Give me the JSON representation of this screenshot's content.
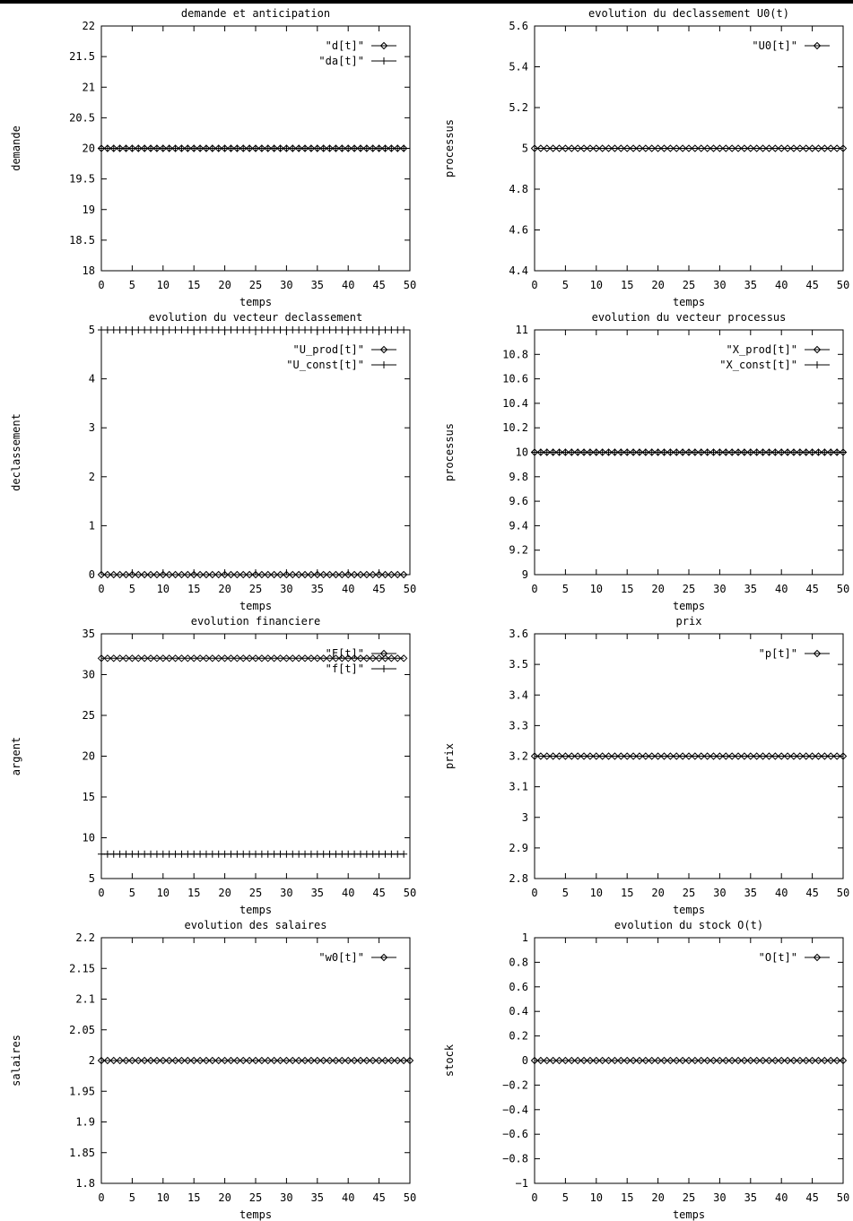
{
  "x_ticks": [
    "0",
    "5",
    "10",
    "15",
    "20",
    "25",
    "30",
    "35",
    "40",
    "45",
    "50"
  ],
  "charts": [
    {
      "title": "demande et anticipation",
      "xlabel": "temps",
      "ylabel": "demande",
      "ylim": [
        18,
        22
      ],
      "yticks": [
        "18",
        "18.5",
        "19",
        "19.5",
        "20",
        "20.5",
        "21",
        "21.5",
        "22"
      ],
      "legend": [
        {
          "label": "\"d[t]\"",
          "marker": "diamond"
        },
        {
          "label": "\"da[t]\"",
          "marker": "plus"
        }
      ]
    },
    {
      "title": "evolution du declassement U0(t)",
      "xlabel": "temps",
      "ylabel": "processus",
      "ylim": [
        4.4,
        5.6
      ],
      "yticks": [
        "4.4",
        "4.6",
        "4.8",
        "5",
        "5.2",
        "5.4",
        "5.6"
      ],
      "legend": [
        {
          "label": "\"U0[t]\"",
          "marker": "diamond"
        }
      ]
    },
    {
      "title": "evolution du vecteur declassement",
      "xlabel": "temps",
      "ylabel": "declassement",
      "ylim": [
        0,
        5
      ],
      "yticks": [
        "0",
        "1",
        "2",
        "3",
        "4",
        "5"
      ],
      "legend": [
        {
          "label": "\"U_prod[t]\"",
          "marker": "diamond"
        },
        {
          "label": "\"U_const[t]\"",
          "marker": "plus"
        }
      ]
    },
    {
      "title": "evolution du vecteur processus",
      "xlabel": "temps",
      "ylabel": "processus",
      "ylim": [
        9,
        11
      ],
      "yticks": [
        "9",
        "9.2",
        "9.4",
        "9.6",
        "9.8",
        "10",
        "10.2",
        "10.4",
        "10.6",
        "10.8",
        "11"
      ],
      "legend": [
        {
          "label": "\"X_prod[t]\"",
          "marker": "diamond"
        },
        {
          "label": "\"X_const[t]\"",
          "marker": "plus"
        }
      ]
    },
    {
      "title": "evolution financiere",
      "xlabel": "temps",
      "ylabel": "argent",
      "ylim": [
        5,
        35
      ],
      "yticks": [
        "5",
        "10",
        "15",
        "20",
        "25",
        "30",
        "35"
      ],
      "legend": [
        {
          "label": "\"F[t]\"",
          "marker": "diamond"
        },
        {
          "label": "\"f[t]\"",
          "marker": "plus"
        }
      ]
    },
    {
      "title": "prix",
      "xlabel": "temps",
      "ylabel": "prix",
      "ylim": [
        2.8,
        3.6
      ],
      "yticks": [
        "2.8",
        "2.9",
        "3",
        "3.1",
        "3.2",
        "3.3",
        "3.4",
        "3.5",
        "3.6"
      ],
      "legend": [
        {
          "label": "\"p[t]\"",
          "marker": "diamond"
        }
      ]
    },
    {
      "title": "evolution des salaires",
      "xlabel": "temps",
      "ylabel": "salaires",
      "ylim": [
        1.8,
        2.2
      ],
      "yticks": [
        "1.8",
        "1.85",
        "1.9",
        "1.95",
        "2",
        "2.05",
        "2.1",
        "2.15",
        "2.2"
      ],
      "legend": [
        {
          "label": "\"w0[t]\"",
          "marker": "diamond"
        }
      ]
    },
    {
      "title": "evolution du stock O(t)",
      "xlabel": "temps",
      "ylabel": "stock",
      "ylim": [
        -1,
        1
      ],
      "yticks": [
        "−1",
        "−0.8",
        "−0.6",
        "−0.4",
        "−0.2",
        "0",
        "0.2",
        "0.4",
        "0.6",
        "0.8",
        "1"
      ],
      "legend": [
        {
          "label": "\"O[t]\"",
          "marker": "diamond"
        }
      ]
    }
  ],
  "chart_data": [
    {
      "type": "line",
      "title": "demande et anticipation",
      "xlabel": "temps",
      "ylabel": "demande",
      "xlim": [
        0,
        50
      ],
      "ylim": [
        18,
        22
      ],
      "series": [
        {
          "name": "\"d[t]\"",
          "marker": "diamond",
          "x_start": 0,
          "x_end": 49,
          "x_step": 1,
          "constant_value": 20
        },
        {
          "name": "\"da[t]\"",
          "marker": "plus",
          "x_start": 0,
          "x_end": 49,
          "x_step": 1,
          "constant_value": 20
        }
      ]
    },
    {
      "type": "line",
      "title": "evolution du declassement U0(t)",
      "xlabel": "temps",
      "ylabel": "processus",
      "xlim": [
        0,
        50
      ],
      "ylim": [
        4.4,
        5.6
      ],
      "series": [
        {
          "name": "\"U0[t]\"",
          "marker": "diamond",
          "x_start": 0,
          "x_end": 50,
          "x_step": 1,
          "constant_value": 5
        }
      ]
    },
    {
      "type": "line",
      "title": "evolution du vecteur declassement",
      "xlabel": "temps",
      "ylabel": "declassement",
      "xlim": [
        0,
        50
      ],
      "ylim": [
        0,
        5
      ],
      "series": [
        {
          "name": "\"U_prod[t]\"",
          "marker": "diamond",
          "x_start": 0,
          "x_end": 49,
          "x_step": 1,
          "constant_value": 0
        },
        {
          "name": "\"U_const[t]\"",
          "marker": "plus",
          "x_start": 0,
          "x_end": 49,
          "x_step": 1,
          "constant_value": 5
        }
      ]
    },
    {
      "type": "line",
      "title": "evolution du vecteur processus",
      "xlabel": "temps",
      "ylabel": "processus",
      "xlim": [
        0,
        50
      ],
      "ylim": [
        9,
        11
      ],
      "series": [
        {
          "name": "\"X_prod[t]\"",
          "marker": "diamond",
          "x_start": 0,
          "x_end": 50,
          "x_step": 1,
          "constant_value": 10
        },
        {
          "name": "\"X_const[t]\"",
          "marker": "plus",
          "x_start": 0,
          "x_end": 50,
          "x_step": 1,
          "constant_value": 10
        }
      ]
    },
    {
      "type": "line",
      "title": "evolution financiere",
      "xlabel": "temps",
      "ylabel": "argent",
      "xlim": [
        0,
        50
      ],
      "ylim": [
        5,
        35
      ],
      "series": [
        {
          "name": "\"F[t]\"",
          "marker": "diamond",
          "x_start": 0,
          "x_end": 49,
          "x_step": 1,
          "constant_value": 32
        },
        {
          "name": "\"f[t]\"",
          "marker": "plus",
          "x_start": 0,
          "x_end": 49,
          "x_step": 1,
          "constant_value": 8
        }
      ]
    },
    {
      "type": "line",
      "title": "prix",
      "xlabel": "temps",
      "ylabel": "prix",
      "xlim": [
        0,
        50
      ],
      "ylim": [
        2.8,
        3.6
      ],
      "series": [
        {
          "name": "\"p[t]\"",
          "marker": "diamond",
          "x_start": 0,
          "x_end": 50,
          "x_step": 1,
          "constant_value": 3.2
        }
      ]
    },
    {
      "type": "line",
      "title": "evolution des salaires",
      "xlabel": "temps",
      "ylabel": "salaires",
      "xlim": [
        0,
        50
      ],
      "ylim": [
        1.8,
        2.2
      ],
      "series": [
        {
          "name": "\"w0[t]\"",
          "marker": "diamond",
          "x_start": 0,
          "x_end": 50,
          "x_step": 1,
          "constant_value": 2
        }
      ]
    },
    {
      "type": "line",
      "title": "evolution du stock O(t)",
      "xlabel": "temps",
      "ylabel": "stock",
      "xlim": [
        0,
        50
      ],
      "ylim": [
        -1,
        1
      ],
      "series": [
        {
          "name": "\"O[t]\"",
          "marker": "diamond",
          "x_start": 0,
          "x_end": 50,
          "x_step": 1,
          "constant_value": 0
        }
      ]
    }
  ]
}
